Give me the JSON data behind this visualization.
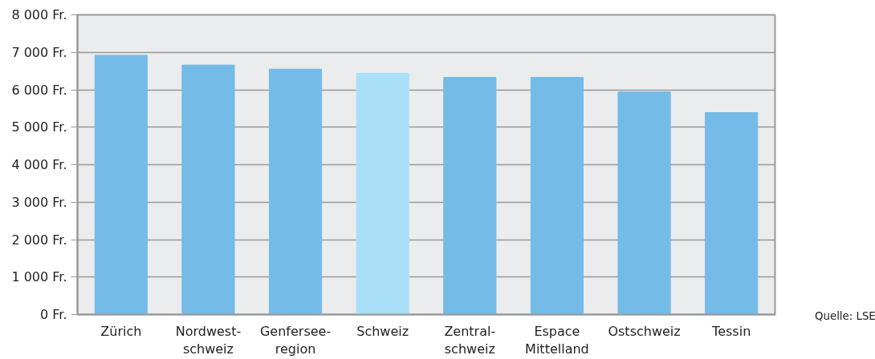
{
  "chart_data": {
    "type": "bar",
    "categories": [
      "Zürich",
      "Nordwest-\nschweiz",
      "Genfersee-\nregion",
      "Schweiz",
      "Zentral-\nschweiz",
      "Espace\nMittelland",
      "Ostschweiz",
      "Tessin"
    ],
    "values": [
      6920,
      6660,
      6550,
      6440,
      6330,
      6330,
      5940,
      5390
    ],
    "colors": [
      "#74bbe7",
      "#74bbe7",
      "#74bbe7",
      "#a9e0f8",
      "#74bbe7",
      "#74bbe7",
      "#74bbe7",
      "#74bbe7"
    ],
    "ylim": [
      0,
      8000
    ],
    "yticks": [
      {
        "value": 0,
        "label": "0 Fr."
      },
      {
        "value": 1000,
        "label": "1 000 Fr."
      },
      {
        "value": 2000,
        "label": "2 000 Fr."
      },
      {
        "value": 3000,
        "label": "3 000 Fr."
      },
      {
        "value": 4000,
        "label": "4 000 Fr."
      },
      {
        "value": 5000,
        "label": "5 000 Fr."
      },
      {
        "value": 6000,
        "label": "6 000 Fr."
      },
      {
        "value": 7000,
        "label": "7 000 Fr."
      },
      {
        "value": 8000,
        "label": "8 000 Fr."
      }
    ],
    "grid": "y",
    "annotations": [
      "Quelle: LSE"
    ]
  }
}
